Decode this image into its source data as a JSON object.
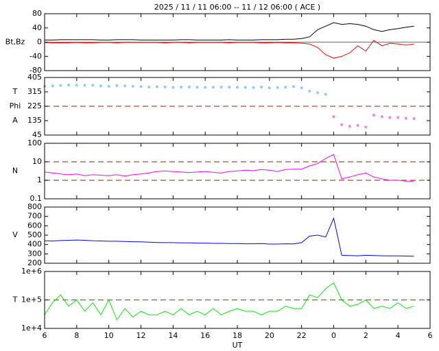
{
  "chart_data": [
    {
      "type": "line",
      "title": "2025 / 11 / 11   06:00 -- 11 / 12   06:00 ( ACE )",
      "ylabels": [
        "Bt,Bz"
      ],
      "x": [
        6,
        6.5,
        7,
        7.5,
        8,
        8.5,
        9,
        9.5,
        10,
        10.5,
        11,
        11.5,
        12,
        12.5,
        13,
        13.5,
        14,
        14.5,
        15,
        15.5,
        16,
        16.5,
        17,
        17.5,
        18,
        18.5,
        19,
        19.5,
        20,
        20.5,
        21,
        21.5,
        22,
        22.5,
        23,
        23.5,
        24,
        24.5,
        25,
        25.5,
        26,
        26.5,
        27,
        27.5,
        28,
        28.5,
        29
      ],
      "series": [
        {
          "color": "#000000",
          "values": [
            6,
            6,
            7,
            7,
            7,
            7,
            7,
            6,
            6,
            7,
            7,
            7,
            6,
            6,
            6,
            6,
            6,
            7,
            7,
            6,
            6,
            6,
            6,
            7,
            6,
            6,
            6,
            7,
            7,
            7,
            8,
            8,
            10,
            15,
            35,
            45,
            55,
            50,
            52,
            50,
            45,
            35,
            30,
            35,
            38,
            42,
            45
          ]
        },
        {
          "color": "#ff0000",
          "values": [
            -1,
            -2,
            -2,
            -2,
            -1,
            -2,
            -2,
            -1,
            -1,
            -2,
            -1,
            -1,
            -1,
            -1,
            -1,
            -2,
            -1,
            -1,
            -2,
            -1,
            -1,
            -1,
            -1,
            -2,
            -1,
            -1,
            -1,
            -2,
            -2,
            -1,
            -2,
            -2,
            -3,
            -5,
            -15,
            -35,
            -45,
            -40,
            -30,
            -10,
            -25,
            5,
            -10,
            -3,
            -5,
            -8,
            -5
          ]
        }
      ],
      "xlim": [
        6,
        30
      ],
      "ylim": [
        -80,
        80
      ],
      "yticks": [
        -80,
        -40,
        0,
        40,
        80
      ],
      "log": false,
      "hlines": [
        0
      ],
      "hline_color": "#808080",
      "hline_dash": false
    },
    {
      "type": "scatter",
      "ylabels": [
        "T",
        "Phi",
        "A"
      ],
      "x": [
        6,
        6.5,
        7,
        7.5,
        8,
        8.5,
        9,
        9.5,
        10,
        10.5,
        11,
        11.5,
        12,
        12.5,
        13,
        13.5,
        14,
        14.5,
        15,
        15.5,
        16,
        16.5,
        17,
        17.5,
        18,
        18.5,
        19,
        19.5,
        20,
        20.5,
        21,
        21.5,
        22,
        22.5,
        23,
        23.5,
        24,
        24.5,
        25,
        25.5,
        26,
        26.5,
        27,
        27.5,
        28,
        28.5,
        29
      ],
      "series": [
        {
          "color": "#87cefa",
          "values": [
            350,
            352,
            355,
            358,
            357,
            356,
            356,
            352,
            350,
            354,
            352,
            350,
            348,
            345,
            347,
            346,
            343,
            345,
            346,
            344,
            343,
            344,
            345,
            345,
            344,
            343,
            342,
            345,
            340,
            342,
            344,
            348,
            340,
            320,
            310,
            300,
            null,
            null,
            null,
            null,
            null,
            null,
            null,
            null,
            null,
            null,
            null
          ]
        },
        {
          "color": "#ee82ee",
          "values": [
            null,
            null,
            null,
            null,
            null,
            null,
            null,
            null,
            null,
            null,
            null,
            null,
            null,
            null,
            null,
            null,
            null,
            null,
            null,
            null,
            null,
            null,
            null,
            null,
            null,
            null,
            null,
            null,
            null,
            null,
            null,
            null,
            null,
            null,
            null,
            null,
            160,
            110,
            100,
            105,
            95,
            170,
            160,
            155,
            155,
            150,
            148
          ]
        }
      ],
      "xlim": [
        6,
        30
      ],
      "ylim": [
        45,
        405
      ],
      "yticks": [
        45,
        135,
        225,
        315,
        405
      ],
      "log": false,
      "hlines": [
        225
      ],
      "hline_color": "#a0522d",
      "hline_dash": true
    },
    {
      "type": "line",
      "ylabels": [
        "N"
      ],
      "x": [
        6,
        6.5,
        7,
        7.5,
        8,
        8.5,
        9,
        9.5,
        10,
        10.5,
        11,
        11.5,
        12,
        12.5,
        13,
        13.5,
        14,
        14.5,
        15,
        15.5,
        16,
        16.5,
        17,
        17.5,
        18,
        18.5,
        19,
        19.5,
        20,
        20.5,
        21,
        21.5,
        22,
        22.5,
        23,
        23.5,
        24,
        24.5,
        25,
        25.5,
        26,
        26.5,
        27,
        27.5,
        28,
        28.5,
        29
      ],
      "series": [
        {
          "color": "#ff00ff",
          "values": [
            2.8,
            2.5,
            2.2,
            2,
            2.2,
            1.8,
            2,
            1.9,
            1.8,
            2,
            1.7,
            2,
            2.2,
            2.5,
            3,
            3.2,
            3,
            2.8,
            2.6,
            2.8,
            3,
            2.7,
            2.5,
            3,
            3.2,
            3.5,
            3.3,
            3.8,
            3.5,
            3,
            3.8,
            4,
            4,
            6,
            8,
            15,
            25,
            1.2,
            1.5,
            2,
            2.5,
            1.5,
            1.2,
            1,
            1,
            0.9,
            0.9
          ]
        }
      ],
      "xlim": [
        6,
        30
      ],
      "ylim": [
        0.1,
        100
      ],
      "yticks": [
        0.1,
        1,
        10,
        100
      ],
      "log": true,
      "hlines": [
        1,
        10
      ],
      "hline_color": "#a0522d",
      "hline_dash": true
    },
    {
      "type": "line",
      "ylabels": [
        "V"
      ],
      "x": [
        6,
        6.5,
        7,
        7.5,
        8,
        8.5,
        9,
        9.5,
        10,
        10.5,
        11,
        11.5,
        12,
        12.5,
        13,
        13.5,
        14,
        14.5,
        15,
        15.5,
        16,
        16.5,
        17,
        17.5,
        18,
        18.5,
        19,
        19.5,
        20,
        20.5,
        21,
        21.5,
        22,
        22.5,
        23,
        23.5,
        24,
        24.5,
        25,
        25.5,
        26,
        26.5,
        27,
        27.5,
        28,
        28.5,
        29
      ],
      "series": [
        {
          "color": "#0000ff",
          "values": [
            440,
            438,
            442,
            445,
            448,
            445,
            440,
            438,
            435,
            435,
            432,
            430,
            428,
            425,
            422,
            420,
            420,
            418,
            418,
            415,
            415,
            412,
            412,
            410,
            410,
            408,
            408,
            410,
            405,
            405,
            408,
            406,
            420,
            490,
            500,
            480,
            680,
            285,
            282,
            280,
            285,
            283,
            280,
            278,
            278,
            277,
            275
          ]
        }
      ],
      "xlim": [
        6,
        30
      ],
      "ylim": [
        200,
        800
      ],
      "yticks": [
        200,
        300,
        400,
        500,
        600,
        700,
        800
      ],
      "log": false
    },
    {
      "type": "line",
      "ylabels": [
        "T"
      ],
      "xlabel": "UT",
      "x": [
        6,
        6.5,
        7,
        7.5,
        8,
        8.5,
        9,
        9.5,
        10,
        10.5,
        11,
        11.5,
        12,
        12.5,
        13,
        13.5,
        14,
        14.5,
        15,
        15.5,
        16,
        16.5,
        17,
        17.5,
        18,
        18.5,
        19,
        19.5,
        20,
        20.5,
        21,
        21.5,
        22,
        22.5,
        23,
        23.5,
        24,
        24.5,
        25,
        25.5,
        26,
        26.5,
        27,
        27.5,
        28,
        28.5,
        29
      ],
      "series": [
        {
          "color": "#00ee00",
          "values": [
            30000,
            80000,
            150000,
            60000,
            100000,
            40000,
            80000,
            30000,
            100000,
            20000,
            50000,
            25000,
            40000,
            30000,
            30000,
            40000,
            30000,
            50000,
            30000,
            40000,
            30000,
            50000,
            30000,
            40000,
            50000,
            40000,
            40000,
            30000,
            40000,
            40000,
            60000,
            50000,
            50000,
            150000,
            120000,
            250000,
            400000,
            100000,
            60000,
            70000,
            100000,
            50000,
            60000,
            50000,
            80000,
            50000,
            60000
          ]
        }
      ],
      "xlim": [
        6,
        30
      ],
      "xticks": [
        6,
        8,
        10,
        12,
        14,
        16,
        18,
        20,
        22,
        {
          "value": 24,
          "label": "0"
        },
        {
          "value": 26,
          "label": "2"
        },
        {
          "value": 28,
          "label": "4"
        },
        {
          "value": 30,
          "label": "6"
        }
      ],
      "ylim": [
        10000,
        1000000
      ],
      "yticks": [
        {
          "value": 10000,
          "label": "1e+4"
        },
        {
          "value": 100000,
          "label": "1e+5"
        },
        {
          "value": 1000000,
          "label": "1e+6"
        }
      ],
      "log": true,
      "hlines": [
        100000
      ],
      "hline_color": "#a0522d",
      "hline_dash": true
    }
  ]
}
